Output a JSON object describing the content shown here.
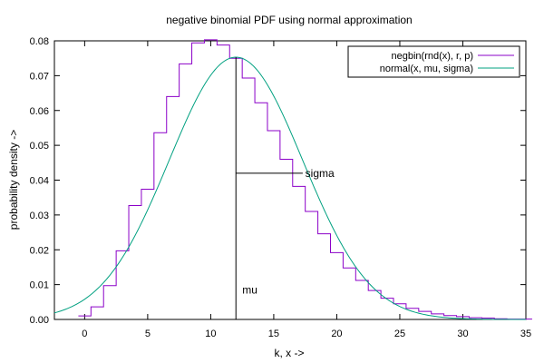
{
  "chart_data": {
    "type": "line",
    "title": "negative binomial PDF using normal approximation",
    "xlabel": "k, x ->",
    "ylabel": "probability density ->",
    "xlim": [
      -2.4,
      35
    ],
    "ylim": [
      0,
      0.08
    ],
    "x_ticks": [
      0,
      5,
      10,
      15,
      20,
      25,
      30,
      35
    ],
    "x_tick_labels": [
      "0",
      "5",
      "10",
      "15",
      "20",
      "25",
      "30",
      "35"
    ],
    "y_ticks": [
      0,
      0.01,
      0.02,
      0.03,
      0.04,
      0.05,
      0.06,
      0.07,
      0.08
    ],
    "y_tick_labels": [
      "0.00",
      "0.01",
      "0.02",
      "0.03",
      "0.04",
      "0.05",
      "0.06",
      "0.07",
      "0.08"
    ],
    "grid": false,
    "legend_position": "top-right",
    "series": [
      {
        "name": "negbin(rnd(x), r, p)",
        "style": "step",
        "color": "#8b00c8",
        "k": [
          0,
          1,
          2,
          3,
          4,
          5,
          6,
          7,
          8,
          9,
          10,
          11,
          12,
          13,
          14,
          15,
          16,
          17,
          18,
          19,
          20,
          21,
          22,
          23,
          24,
          25,
          26,
          27,
          28,
          29,
          30,
          31,
          32,
          33,
          34,
          35
        ],
        "values": [
          0.001,
          0.0036,
          0.0097,
          0.0197,
          0.0327,
          0.0374,
          0.0536,
          0.064,
          0.0734,
          0.0794,
          0.0803,
          0.0788,
          0.075,
          0.0693,
          0.0622,
          0.0542,
          0.046,
          0.0382,
          0.031,
          0.0246,
          0.0192,
          0.0148,
          0.0112,
          0.0083,
          0.0061,
          0.0045,
          0.0032,
          0.0023,
          0.0016,
          0.0011,
          0.0008,
          0.0005,
          0.0004,
          0.0002,
          0.0001,
          0.0001
        ]
      },
      {
        "name": "normal(x, mu, sigma)",
        "style": "line",
        "color": "#00a080",
        "mu": 12,
        "sigma": 5.3,
        "peak": 0.0753
      }
    ],
    "annotations": [
      {
        "text": "mu",
        "x": 12,
        "y": 0.0085
      },
      {
        "text": "sigma",
        "x": 17.5,
        "y": 0.042
      }
    ],
    "markers": {
      "mu_line": {
        "x": 12,
        "y_from": 0,
        "y_to": 0.0753
      },
      "sigma_line": {
        "x_from": 12,
        "x_to": 17.3,
        "y": 0.042
      }
    }
  }
}
